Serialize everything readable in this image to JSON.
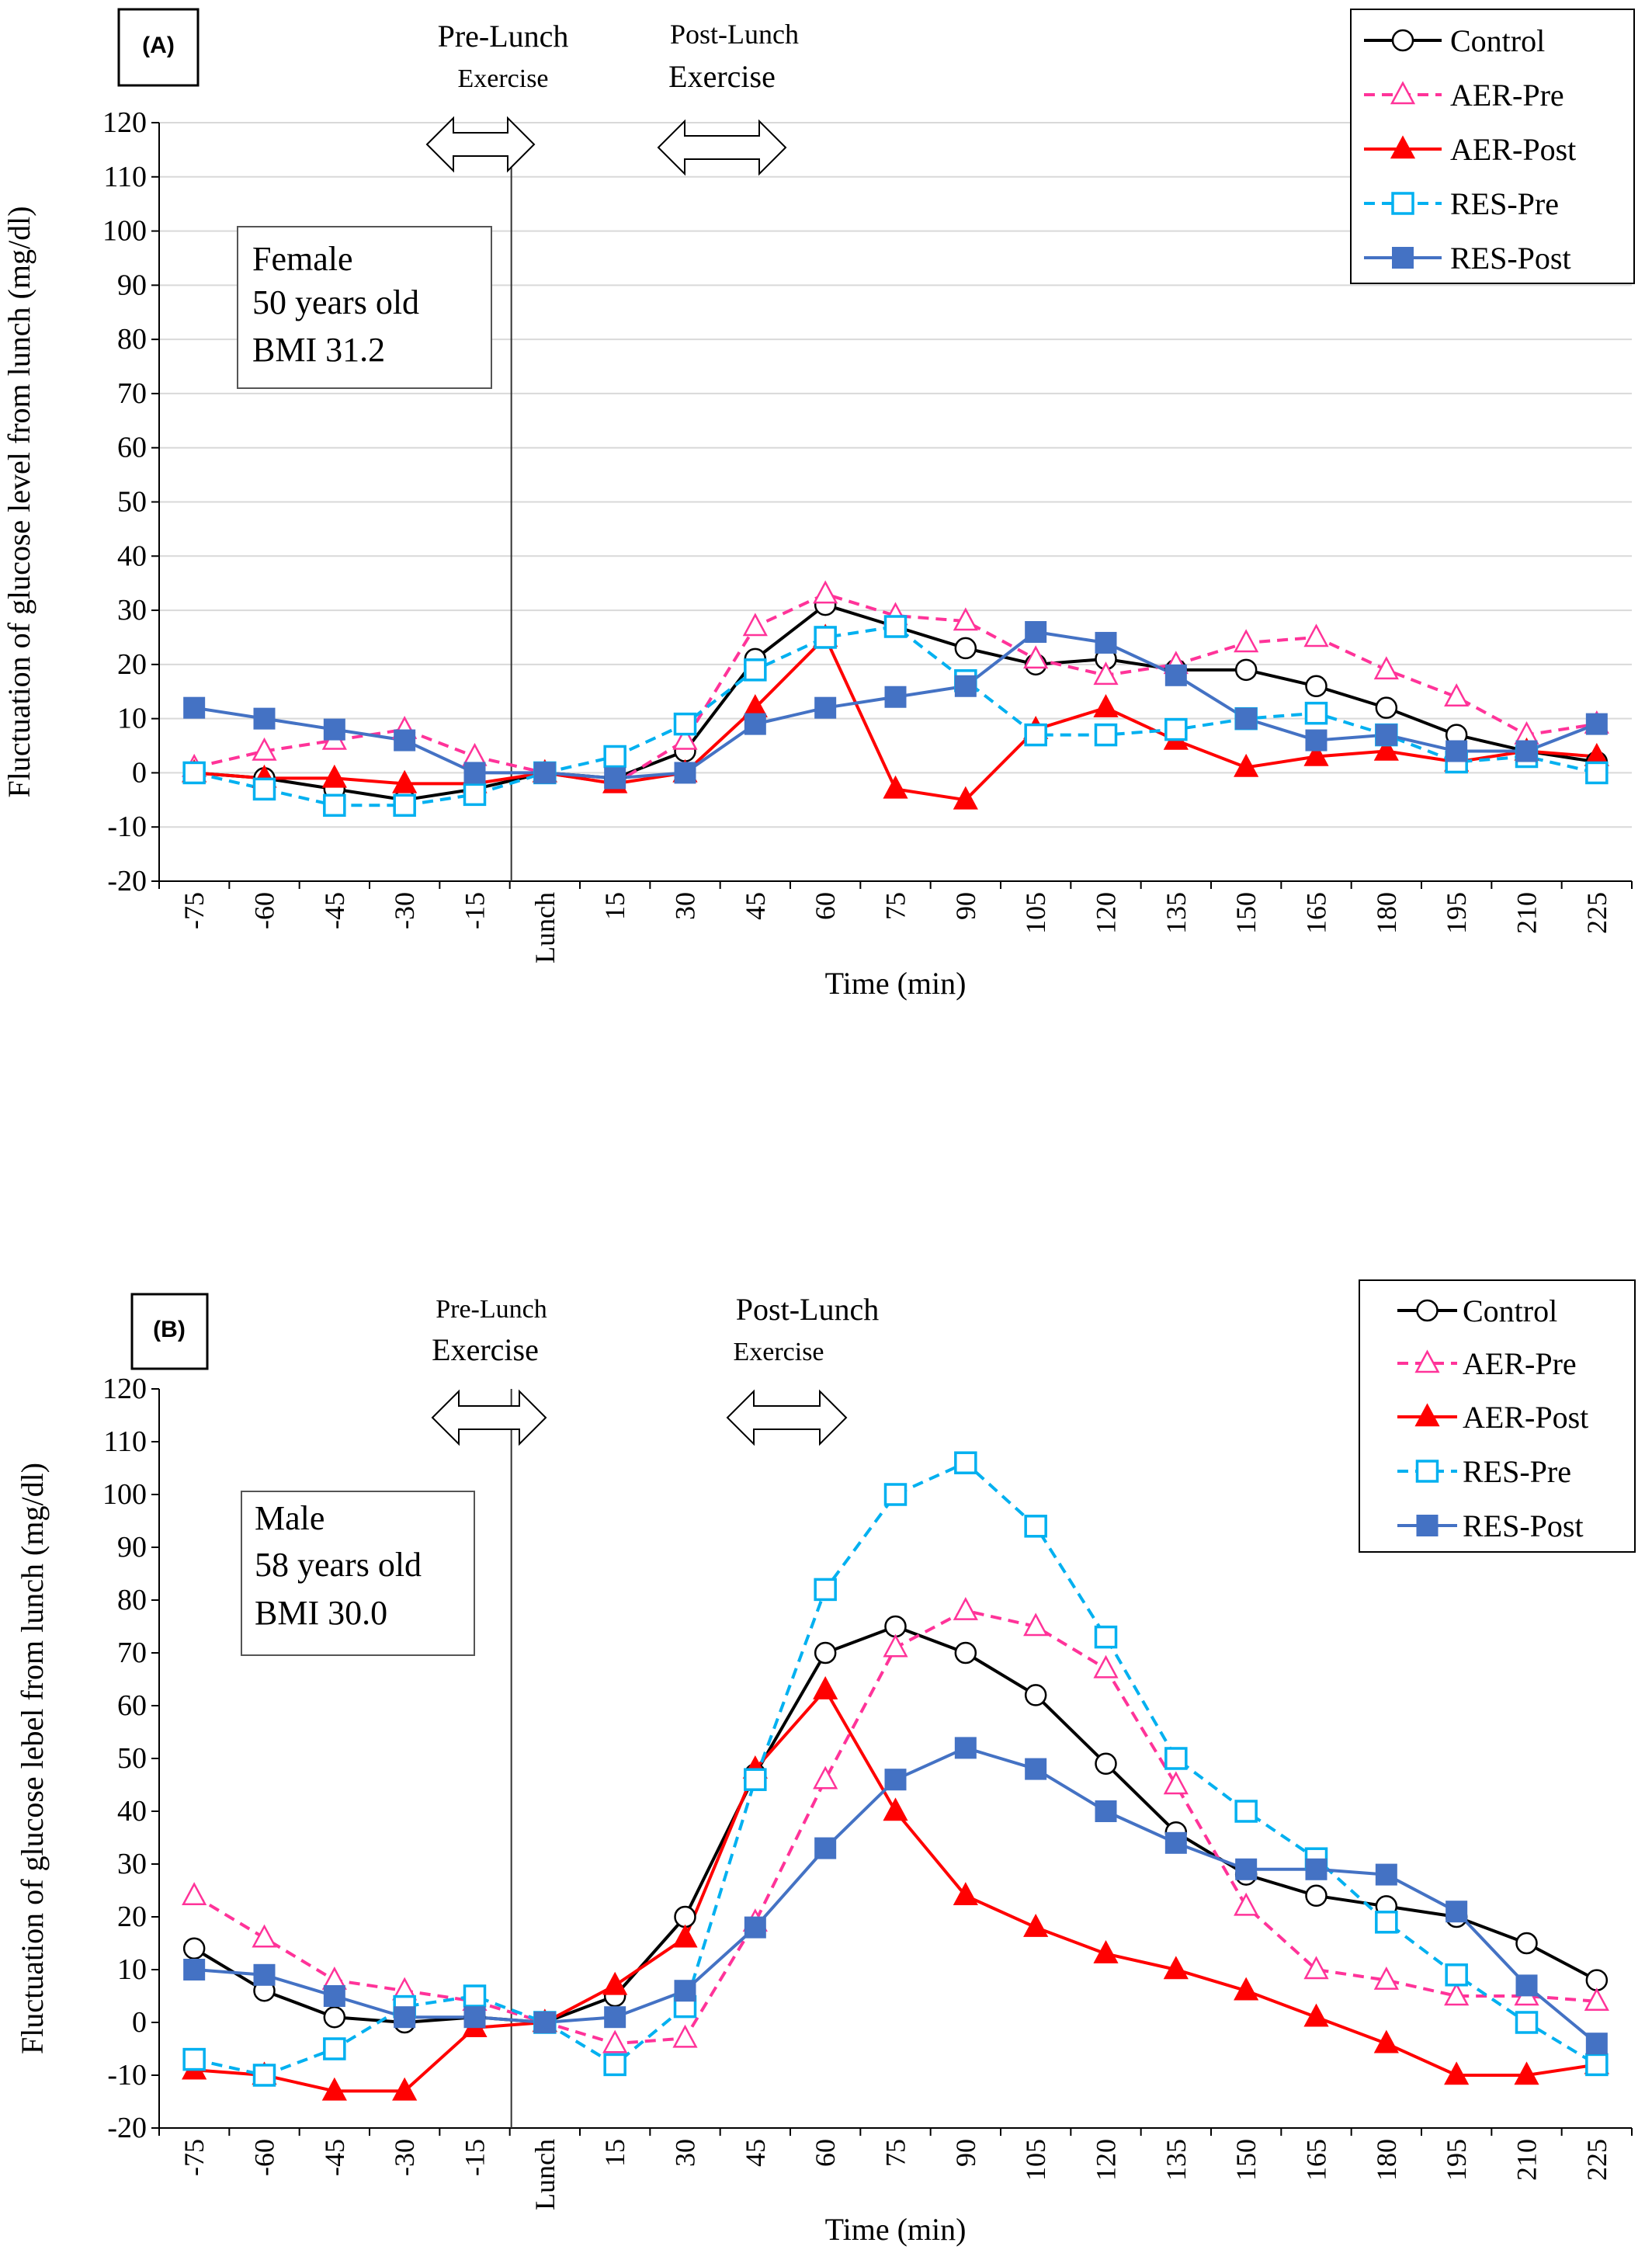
{
  "chart_data": [
    {
      "type": "line",
      "panel_label": "(A)",
      "ylabel": "Fluctuation of glucose level from lunch (mg/dl)",
      "xlabel": "Time (min)",
      "ylim": [
        -20,
        120
      ],
      "yticks": [
        "120",
        "110",
        "100",
        "90",
        "80",
        "70",
        "60",
        "50",
        "40",
        "30",
        "20",
        "10",
        "0",
        "-10",
        "-20"
      ],
      "grid": true,
      "legend_position": "top-right",
      "categories": [
        "-75",
        "-60",
        "-45",
        "-30",
        "-15",
        "Lunch",
        "15",
        "30",
        "45",
        "60",
        "75",
        "90",
        "105",
        "120",
        "135",
        "150",
        "165",
        "180",
        "195",
        "210",
        "225"
      ],
      "lunch_label": "Lunch",
      "annotations": {
        "pre_line1": "Pre-Lunch",
        "pre_line2": "Exercise",
        "post_line1": "Post-Lunch",
        "post_line2": "Exercise"
      },
      "info_box": [
        "Female",
        "50 years old",
        "BMI 31.2"
      ],
      "series": [
        {
          "name": "Control",
          "color": "#000000",
          "dash": false,
          "marker": "circle-open",
          "values": [
            0,
            -1,
            -3,
            -5,
            -3,
            0,
            -1,
            4,
            21,
            31,
            27,
            23,
            20,
            21,
            19,
            19,
            16,
            12,
            7,
            4,
            2
          ]
        },
        {
          "name": "AER-Pre",
          "color": "#ff3399",
          "dash": true,
          "marker": "triangle-open",
          "values": [
            1,
            4,
            6,
            8,
            3,
            0,
            -2,
            6,
            27,
            33,
            29,
            28,
            21,
            18,
            20,
            24,
            25,
            19,
            14,
            7,
            9
          ]
        },
        {
          "name": "AER-Post",
          "color": "#ff0000",
          "dash": false,
          "marker": "triangle-filled",
          "values": [
            0,
            -1,
            -1,
            -2,
            -2,
            0,
            -2,
            0,
            12,
            25,
            -3,
            -5,
            8,
            12,
            6,
            1,
            3,
            4,
            2,
            4,
            3
          ]
        },
        {
          "name": "RES-Pre",
          "color": "#00b0f0",
          "dash": true,
          "marker": "square-open",
          "values": [
            0,
            -3,
            -6,
            -6,
            -4,
            0,
            3,
            9,
            19,
            25,
            27,
            17,
            7,
            7,
            8,
            10,
            11,
            7,
            2,
            3,
            0
          ]
        },
        {
          "name": "RES-Post",
          "color": "#4472c4",
          "dash": false,
          "marker": "square-filled",
          "values": [
            12,
            10,
            8,
            6,
            0,
            0,
            -1,
            0,
            9,
            12,
            14,
            16,
            26,
            24,
            18,
            10,
            6,
            7,
            4,
            4,
            9
          ]
        }
      ]
    },
    {
      "type": "line",
      "panel_label": "(B)",
      "ylabel": "Fluctuation of glucose lebel from lunch (mg/dl)",
      "xlabel": "Time (min)",
      "ylim": [
        -20,
        120
      ],
      "yticks": [
        "120",
        "110",
        "100",
        "90",
        "80",
        "70",
        "60",
        "50",
        "40",
        "30",
        "20",
        "10",
        "0",
        "-10",
        "-20"
      ],
      "grid": false,
      "legend_position": "top-right",
      "categories": [
        "-75",
        "-60",
        "-45",
        "-30",
        "-15",
        "Lunch",
        "15",
        "30",
        "45",
        "60",
        "75",
        "90",
        "105",
        "120",
        "135",
        "150",
        "165",
        "180",
        "195",
        "210",
        "225"
      ],
      "lunch_label": "Lunch",
      "annotations": {
        "pre_line1": "Pre-Lunch",
        "pre_line2": "Exercise",
        "post_line1": "Post-Lunch",
        "post_line2": "Exercise"
      },
      "info_box": [
        "Male",
        "58 years old",
        "BMI 30.0"
      ],
      "series": [
        {
          "name": "Control",
          "color": "#000000",
          "dash": false,
          "marker": "circle-open",
          "values": [
            14,
            6,
            1,
            0,
            1,
            0,
            5,
            20,
            47,
            70,
            75,
            70,
            62,
            49,
            36,
            28,
            24,
            22,
            20,
            15,
            8
          ]
        },
        {
          "name": "AER-Pre",
          "color": "#ff3399",
          "dash": true,
          "marker": "triangle-open",
          "values": [
            24,
            16,
            8,
            6,
            4,
            0,
            -4,
            -3,
            19,
            46,
            71,
            78,
            75,
            67,
            45,
            22,
            10,
            8,
            5,
            5,
            4
          ]
        },
        {
          "name": "AER-Post",
          "color": "#ff0000",
          "dash": false,
          "marker": "triangle-filled",
          "values": [
            -9,
            -10,
            -13,
            -13,
            -1,
            0,
            7,
            16,
            48,
            63,
            40,
            24,
            18,
            13,
            10,
            6,
            1,
            -4,
            -10,
            -10,
            -8
          ]
        },
        {
          "name": "RES-Pre",
          "color": "#00b0f0",
          "dash": true,
          "marker": "square-open",
          "values": [
            -7,
            -10,
            -5,
            3,
            5,
            0,
            -8,
            3,
            46,
            82,
            100,
            106,
            94,
            73,
            50,
            40,
            31,
            19,
            9,
            0,
            -8
          ]
        },
        {
          "name": "RES-Post",
          "color": "#4472c4",
          "dash": false,
          "marker": "square-filled",
          "values": [
            10,
            9,
            5,
            1,
            1,
            0,
            1,
            6,
            18,
            33,
            46,
            52,
            48,
            40,
            34,
            29,
            29,
            28,
            21,
            7,
            -4
          ]
        }
      ]
    }
  ]
}
